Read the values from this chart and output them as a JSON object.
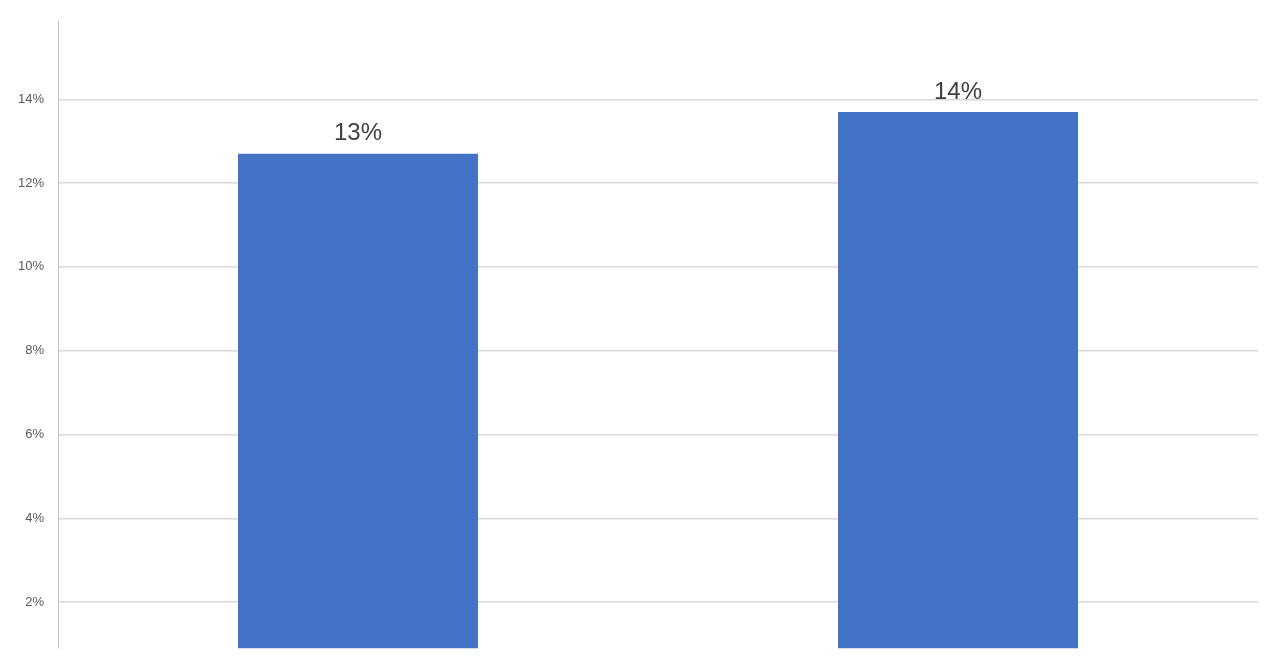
{
  "chart_data": {
    "type": "bar",
    "categories": [
      null,
      null
    ],
    "series": [
      {
        "color": "#4472c4",
        "values": [
          12.7,
          13.7
        ],
        "value_labels": [
          "13%",
          "14%"
        ]
      }
    ],
    "ylim": [
      0.9,
      15.85
    ],
    "yticks": [
      {
        "value": 2,
        "label": "2%"
      },
      {
        "value": 4,
        "label": "4%"
      },
      {
        "value": 6,
        "label": "6%"
      },
      {
        "value": 8,
        "label": "8%"
      },
      {
        "value": 10,
        "label": "10%"
      },
      {
        "value": 12,
        "label": "12%"
      },
      {
        "value": 14,
        "label": "14%"
      }
    ],
    "grid": "y",
    "tick_labels": "y"
  }
}
